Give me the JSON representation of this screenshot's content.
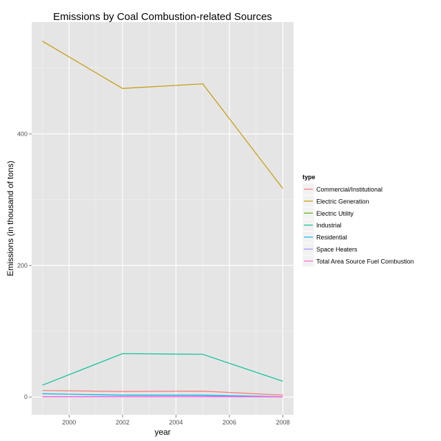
{
  "chart_data": {
    "type": "line",
    "title": "Emissions by Coal Combustion-related Sources",
    "xlabel": "year",
    "ylabel": "Emissions (in thousand of tons)",
    "xlim": [
      1998.6,
      2008.4
    ],
    "ylim": [
      -27,
      570
    ],
    "x_ticks": [
      2000,
      2002,
      2004,
      2006,
      2008
    ],
    "y_ticks": [
      0,
      200,
      400
    ],
    "grid": true,
    "legend": {
      "title": "type",
      "position": "right"
    },
    "x": [
      1999,
      2002,
      2005,
      2008
    ],
    "series": [
      {
        "name": "Commercial/Institutional",
        "color": "#F8766D",
        "values": [
          10,
          8.5,
          9,
          3
        ]
      },
      {
        "name": "Electric Generation",
        "color": "#C49A00",
        "values": [
          541,
          469,
          476,
          317
        ]
      },
      {
        "name": "Electric Utility",
        "color": "#53B400",
        "values": [
          0.3,
          0.5,
          0.6,
          0.2
        ]
      },
      {
        "name": "Industrial",
        "color": "#00C094",
        "values": [
          18,
          66,
          65,
          24
        ]
      },
      {
        "name": "Residential",
        "color": "#00B6EB",
        "values": [
          5,
          3,
          3,
          0.5
        ]
      },
      {
        "name": "Space Heaters",
        "color": "#A58AFF",
        "values": [
          0.5,
          1,
          1.2,
          0.6
        ]
      },
      {
        "name": "Total Area Source Fuel Combustion",
        "color": "#FB61D7",
        "values": [
          0.3,
          0.3,
          0.3,
          0.2
        ]
      }
    ]
  }
}
